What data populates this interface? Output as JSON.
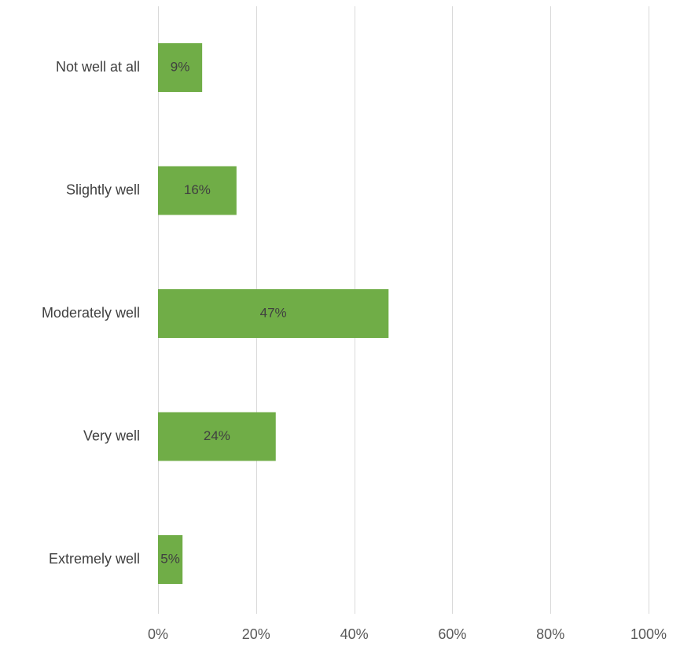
{
  "chart_data": {
    "type": "bar",
    "orientation": "horizontal",
    "categories": [
      "Not well at all",
      "Slightly well",
      "Moderately well",
      "Very well",
      "Extremely well"
    ],
    "values": [
      9,
      16,
      47,
      24,
      5
    ],
    "data_labels": [
      "9%",
      "16%",
      "47%",
      "24%",
      "5%"
    ],
    "xlim": [
      0,
      100
    ],
    "x_ticks": [
      0,
      20,
      40,
      60,
      80,
      100
    ],
    "x_tick_labels": [
      "0%",
      "20%",
      "40%",
      "60%",
      "80%",
      "100%"
    ],
    "grid": "vertical",
    "legend": "none",
    "bar_color": "#70AD47",
    "grid_color": "#D9D9D9"
  }
}
